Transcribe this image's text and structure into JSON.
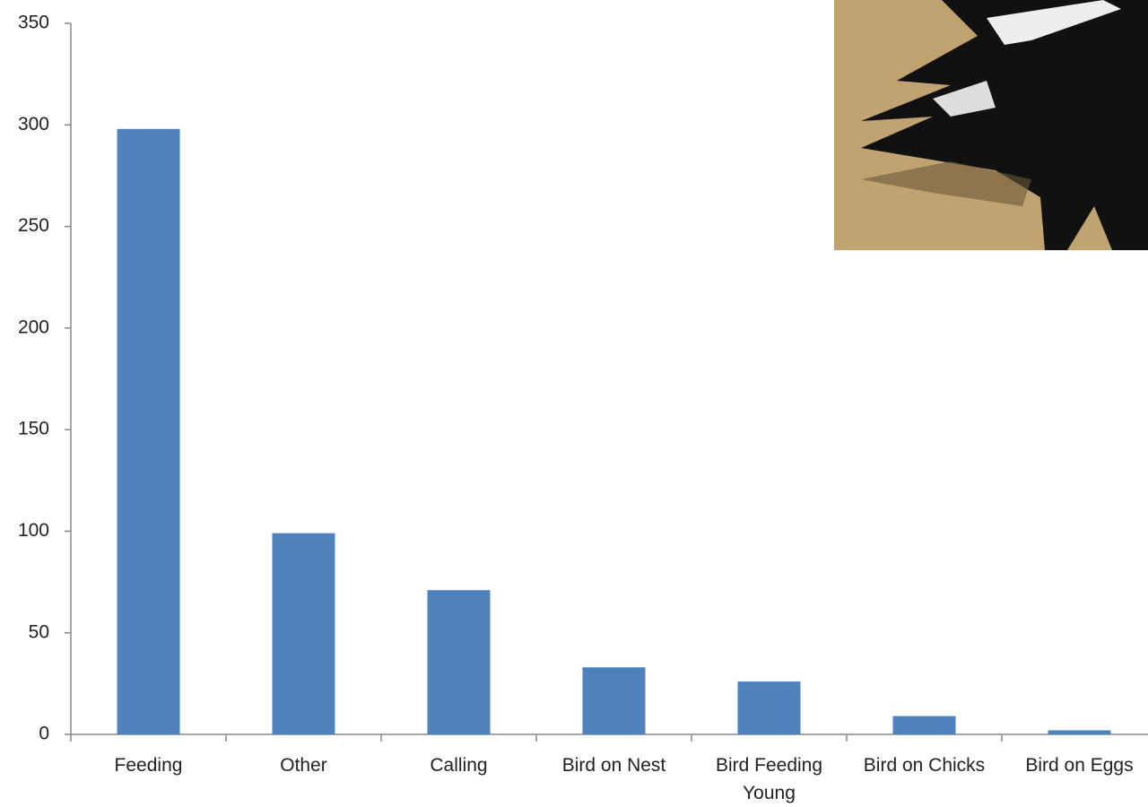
{
  "chart_data": {
    "type": "bar",
    "categories": [
      "Feeding",
      "Other",
      "Calling",
      "Bird on Nest",
      "Bird Feeding Young",
      "Bird on Chicks",
      "Bird on Eggs"
    ],
    "values": [
      298,
      99,
      71,
      33,
      26,
      9,
      2
    ],
    "color": "#4f81bd",
    "ylim": [
      0,
      350
    ],
    "yticks": [
      0,
      50,
      100,
      150,
      200,
      250,
      300,
      350
    ],
    "grid": false
  }
}
